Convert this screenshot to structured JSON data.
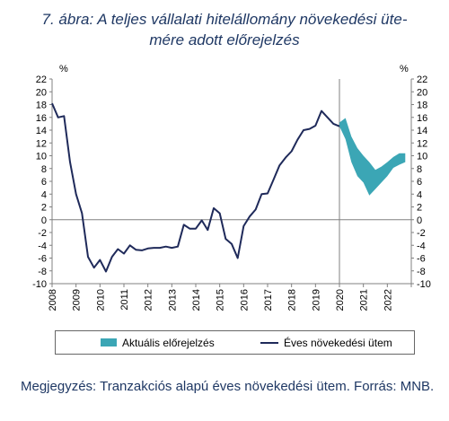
{
  "title_line1": "7. ábra: A teljes vállalati hitelállomány növekedési üte-",
  "title_line2": "mére adott előrejelzés",
  "note": "Megjegyzés: Tranzakciós alapú éves növekedési ütem. Forrás: MNB.",
  "chart_data": {
    "type": "line",
    "yunit_left": "%",
    "yunit_right": "%",
    "ylim": [
      -10,
      22
    ],
    "yticks": [
      22,
      20,
      18,
      16,
      14,
      12,
      10,
      8,
      6,
      4,
      2,
      0,
      -2,
      -4,
      -6,
      -8,
      -10
    ],
    "x_tick_labels": [
      "2008",
      "2009",
      "2010",
      "2011",
      "2012",
      "2013",
      "2014",
      "2015",
      "2016",
      "2017",
      "2018",
      "2019",
      "2020",
      "2021",
      "2022"
    ],
    "xlim": [
      2008,
      2023
    ],
    "forecast_start": 2020,
    "series": [
      {
        "name": "Éves növekedési ütem",
        "color": "#1f2a5a",
        "x": [
          2008.0,
          2008.25,
          2008.5,
          2008.75,
          2009.0,
          2009.25,
          2009.5,
          2009.75,
          2010.0,
          2010.25,
          2010.5,
          2010.75,
          2011.0,
          2011.25,
          2011.5,
          2011.75,
          2012.0,
          2012.25,
          2012.5,
          2012.75,
          2013.0,
          2013.25,
          2013.5,
          2013.75,
          2014.0,
          2014.25,
          2014.5,
          2014.75,
          2015.0,
          2015.25,
          2015.5,
          2015.75,
          2016.0,
          2016.25,
          2016.5,
          2016.75,
          2017.0,
          2017.25,
          2017.5,
          2017.75,
          2018.0,
          2018.25,
          2018.5,
          2018.75,
          2019.0,
          2019.25,
          2019.5,
          2019.75,
          2020.0
        ],
        "values": [
          18.2,
          16.0,
          16.2,
          9.0,
          4.0,
          1.0,
          -5.8,
          -7.5,
          -6.3,
          -8.1,
          -5.8,
          -4.6,
          -5.3,
          -4.0,
          -4.7,
          -4.8,
          -4.5,
          -4.4,
          -4.4,
          -4.2,
          -4.4,
          -4.2,
          -0.8,
          -1.4,
          -1.4,
          -0.1,
          -1.6,
          1.8,
          1.0,
          -3.0,
          -3.8,
          -6.0,
          -1.0,
          0.5,
          1.6,
          4.0,
          4.1,
          6.3,
          8.5,
          9.7,
          10.7,
          12.5,
          14.0,
          14.2,
          14.7,
          17.0,
          16.0,
          15.0,
          14.6
        ]
      }
    ],
    "forecast_band": {
      "name": "Aktuális előrejelzés",
      "color": "#3ba6b5",
      "x": [
        2020.0,
        2020.25,
        2020.5,
        2020.75,
        2021.0,
        2021.25,
        2021.5,
        2021.75,
        2022.0,
        2022.25,
        2022.5,
        2022.75
      ],
      "upper": [
        15.2,
        15.9,
        13.0,
        11.2,
        10.0,
        9.0,
        7.8,
        8.3,
        9.0,
        9.8,
        10.4,
        10.4
      ],
      "lower": [
        14.6,
        12.6,
        9.0,
        6.8,
        5.8,
        3.8,
        4.8,
        5.8,
        6.8,
        8.1,
        8.6,
        9.0
      ]
    },
    "legend": {
      "position": "bottom",
      "entries": [
        "Aktuális előrejelzés",
        "Éves növekedési ütem"
      ]
    }
  }
}
